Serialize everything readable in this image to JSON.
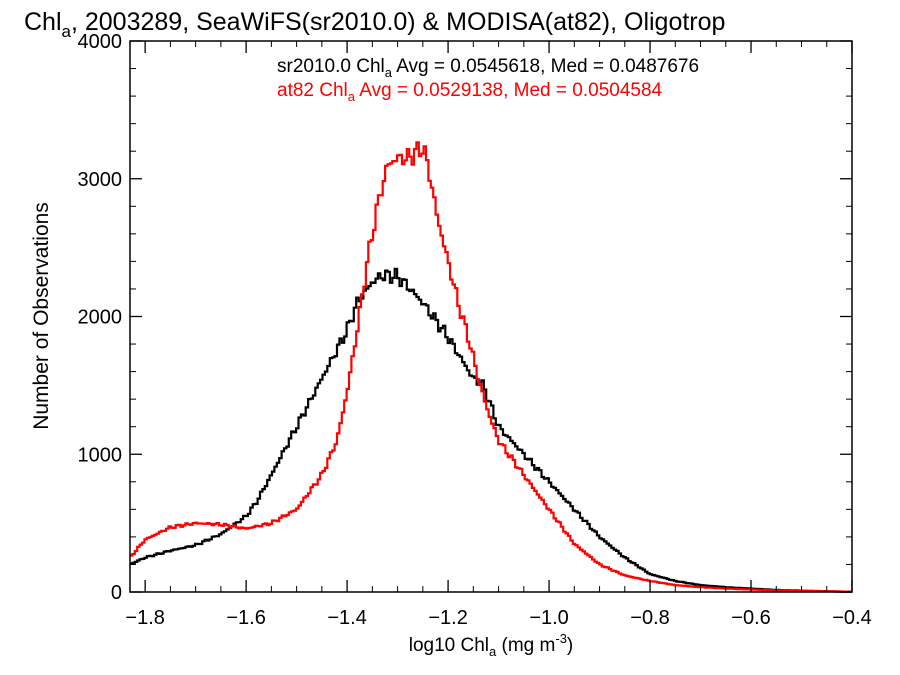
{
  "chart_data": {
    "type": "line",
    "title": {
      "prefix": "Chl",
      "sub": "a",
      "suffix": ", 2003289, SeaWiFS(sr2010.0) & MODISA(at82), Oligotrop"
    },
    "xlabel": {
      "prefix": "log10 Chl",
      "sub": "a",
      "mid": " (mg m",
      "sup": "-3",
      "end": ")"
    },
    "ylabel": "Number of Observations",
    "xlim": [
      -1.83,
      -0.4
    ],
    "ylim": [
      0,
      4000
    ],
    "xticks": [
      -1.8,
      -1.6,
      -1.4,
      -1.2,
      -1.0,
      -0.8,
      -0.6,
      -0.4
    ],
    "xtick_labels": [
      "−1.8",
      "−1.6",
      "−1.4",
      "−1.2",
      "−1.0",
      "−0.8",
      "−0.6",
      "−0.4"
    ],
    "yticks": [
      0,
      1000,
      2000,
      3000,
      4000
    ],
    "ytick_labels": [
      "0",
      "1000",
      "2000",
      "3000",
      "4000"
    ],
    "x_minor_step": 0.05,
    "y_minor_step": 200,
    "grid": false,
    "series": [
      {
        "name": "sr2010.0",
        "color": "#000000",
        "legend": {
          "prefix": "sr2010.0 Chl",
          "sub": "a",
          "suffix": " Avg = 0.0545618, Med = 0.0487676"
        },
        "x": [
          -1.83,
          -1.8,
          -1.75,
          -1.7,
          -1.65,
          -1.6,
          -1.58,
          -1.55,
          -1.5,
          -1.45,
          -1.4,
          -1.38,
          -1.35,
          -1.33,
          -1.3,
          -1.28,
          -1.25,
          -1.2,
          -1.15,
          -1.13,
          -1.1,
          -1.05,
          -1.0,
          -0.95,
          -0.9,
          -0.85,
          -0.8,
          -0.75,
          -0.7,
          -0.65,
          -0.6,
          -0.55,
          -0.5,
          -0.45,
          -0.4
        ],
        "y": [
          200,
          250,
          300,
          340,
          420,
          550,
          650,
          850,
          1200,
          1550,
          1900,
          2100,
          2250,
          2300,
          2290,
          2220,
          2100,
          1850,
          1550,
          1500,
          1200,
          1000,
          800,
          600,
          400,
          250,
          130,
          80,
          50,
          35,
          25,
          15,
          10,
          5,
          2
        ]
      },
      {
        "name": "at82",
        "color": "#ff0000",
        "legend": {
          "prefix": "at82 Chl",
          "sub": "a",
          "suffix": " Avg = 0.0529138, Med = 0.0504584"
        },
        "x": [
          -1.83,
          -1.8,
          -1.75,
          -1.7,
          -1.65,
          -1.6,
          -1.55,
          -1.5,
          -1.45,
          -1.42,
          -1.4,
          -1.38,
          -1.36,
          -1.34,
          -1.32,
          -1.3,
          -1.28,
          -1.26,
          -1.25,
          -1.24,
          -1.22,
          -1.2,
          -1.18,
          -1.16,
          -1.14,
          -1.12,
          -1.1,
          -1.08,
          -1.05,
          -1.0,
          -0.95,
          -0.9,
          -0.85,
          -0.8,
          -0.75,
          -0.7,
          -0.65,
          -0.6,
          -0.55,
          -0.5,
          -0.45,
          -0.4
        ],
        "y": [
          250,
          380,
          470,
          500,
          490,
          460,
          500,
          600,
          850,
          1100,
          1450,
          1900,
          2400,
          2800,
          3100,
          3150,
          3150,
          3200,
          3230,
          3100,
          2700,
          2400,
          2100,
          1850,
          1550,
          1300,
          1100,
          1000,
          850,
          600,
          350,
          200,
          120,
          80,
          50,
          35,
          25,
          18,
          12,
          8,
          5,
          2
        ]
      }
    ]
  }
}
